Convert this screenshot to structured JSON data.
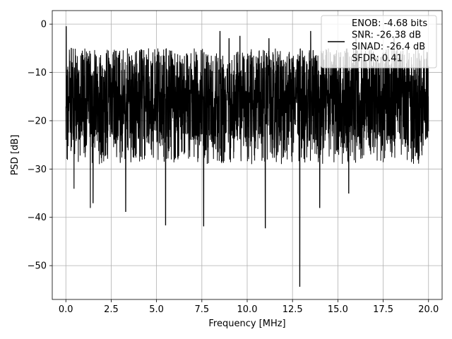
{
  "chart_data": {
    "type": "line",
    "title": "",
    "xlabel": "Frequency [MHz]",
    "ylabel": "PSD [dB]",
    "xlim": [
      -0.75,
      20.75
    ],
    "ylim": [
      -57,
      2.8
    ],
    "xticks": [
      0.0,
      2.5,
      5.0,
      7.5,
      10.0,
      12.5,
      15.0,
      17.5,
      20.0
    ],
    "xtick_labels": [
      "0.0",
      "2.5",
      "5.0",
      "7.5",
      "10.0",
      "12.5",
      "15.0",
      "17.5",
      "20.0"
    ],
    "yticks": [
      0,
      -10,
      -20,
      -30,
      -40,
      -50
    ],
    "ytick_labels": [
      "0",
      "−10",
      "−20",
      "−30",
      "−40",
      "−50"
    ],
    "grid": true,
    "legend_position": "top-right",
    "legend_entries": [
      "ENOB: -4.68 bits",
      "SNR: -26.38 dB",
      "SINAD: -26.4 dB",
      "SFDR: 0.41"
    ],
    "line_color": "#000000",
    "series": [
      {
        "x_range": [
          0.0,
          20.0
        ],
        "peaks": [
          {
            "x": 0.02,
            "y": -0.5
          },
          {
            "x": 0.3,
            "y": -5
          },
          {
            "x": 8.5,
            "y": -1.5
          },
          {
            "x": 9.0,
            "y": -3.0
          },
          {
            "x": 9.6,
            "y": -2.5
          },
          {
            "x": 11.2,
            "y": -3.0
          },
          {
            "x": 13.5,
            "y": -1.5
          },
          {
            "x": 16.0,
            "y": -3.0
          },
          {
            "x": 18.1,
            "y": -3.0
          }
        ],
        "dips": [
          {
            "x": 0.45,
            "y": -34
          },
          {
            "x": 1.35,
            "y": -38
          },
          {
            "x": 1.5,
            "y": -37
          },
          {
            "x": 3.3,
            "y": -38.8
          },
          {
            "x": 5.5,
            "y": -41.6
          },
          {
            "x": 7.6,
            "y": -41.8
          },
          {
            "x": 11.0,
            "y": -42.2
          },
          {
            "x": 12.9,
            "y": -54.3
          },
          {
            "x": 14.0,
            "y": -38
          },
          {
            "x": 15.6,
            "y": -35
          }
        ]
      }
    ]
  }
}
